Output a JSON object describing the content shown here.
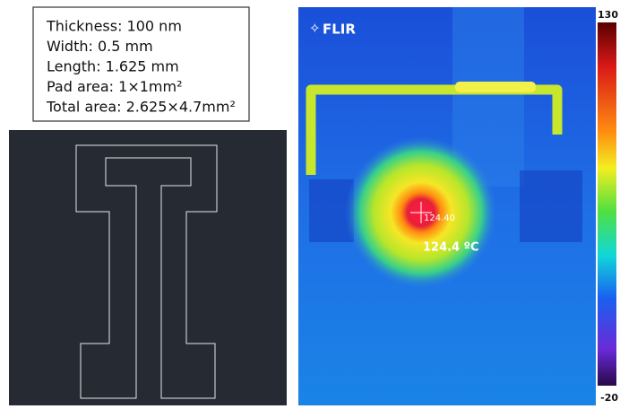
{
  "spec_box": {
    "lines": [
      "Thickness: 100 nm",
      "Width: 0.5 mm",
      "Length: 1.625 mm",
      "Pad area: 1×1mm²",
      "Total area: 2.625×4.7mm²"
    ]
  },
  "thermal": {
    "logo": "FLIR",
    "spot_label": "124.40",
    "spot_reading": "124.4 ºC"
  },
  "colorbar": {
    "max": 130,
    "min": -20
  }
}
